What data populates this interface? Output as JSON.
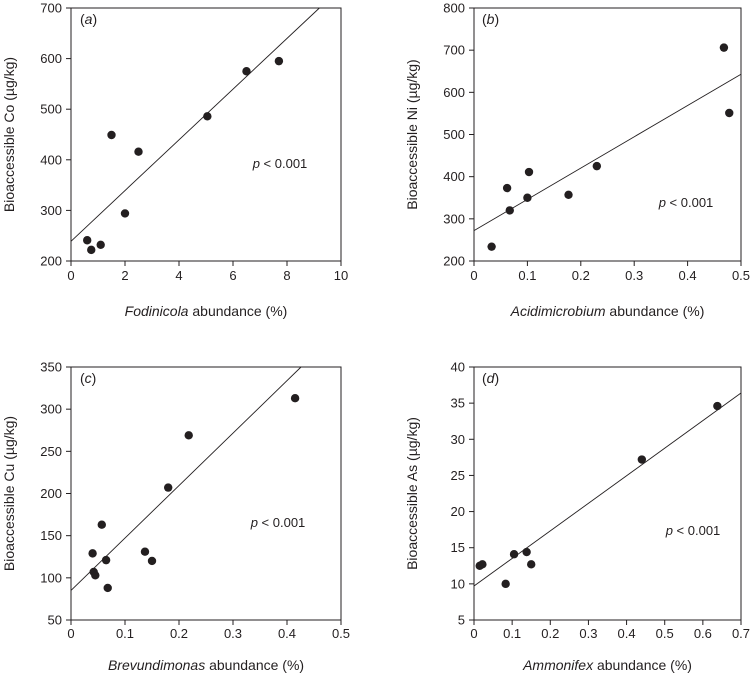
{
  "chart_data": [
    {
      "type": "scatter",
      "panel_label_open": "(",
      "panel_label_letter": "a",
      "panel_label_close": ")",
      "xlabel_italic": "Fodinicola",
      "xlabel_rest": " abundance (%)",
      "ylabel": "Bioaccessible Co (µg/kg)",
      "xlim": [
        0,
        10
      ],
      "ylim": [
        200,
        700
      ],
      "xticks": [
        0,
        2,
        4,
        6,
        8,
        10
      ],
      "yticks": [
        200,
        300,
        400,
        500,
        600,
        700
      ],
      "points": [
        {
          "x": 0.6,
          "y": 241
        },
        {
          "x": 0.75,
          "y": 222
        },
        {
          "x": 1.1,
          "y": 232
        },
        {
          "x": 1.5,
          "y": 449
        },
        {
          "x": 2.0,
          "y": 294
        },
        {
          "x": 2.5,
          "y": 416
        },
        {
          "x": 5.05,
          "y": 486
        },
        {
          "x": 6.5,
          "y": 575
        },
        {
          "x": 7.7,
          "y": 595
        }
      ],
      "fit_line": {
        "x": [
          0,
          9.2
        ],
        "y": [
          239,
          700
        ]
      },
      "annotation_italic": "p",
      "annotation_rest": " < 0.001"
    },
    {
      "type": "scatter",
      "panel_label_open": "(",
      "panel_label_letter": "b",
      "panel_label_close": ")",
      "xlabel_italic": "Acidimicrobium",
      "xlabel_rest": " abundance (%)",
      "ylabel": "Bioaccessible Ni (µg/kg)",
      "xlim": [
        0,
        0.5
      ],
      "ylim": [
        200,
        800
      ],
      "xticks": [
        0,
        0.1,
        0.2,
        0.3,
        0.4,
        0.5
      ],
      "yticks": [
        200,
        300,
        400,
        500,
        600,
        700,
        800
      ],
      "points": [
        {
          "x": 0.033,
          "y": 234
        },
        {
          "x": 0.062,
          "y": 373
        },
        {
          "x": 0.067,
          "y": 320
        },
        {
          "x": 0.1,
          "y": 350
        },
        {
          "x": 0.103,
          "y": 411
        },
        {
          "x": 0.177,
          "y": 357
        },
        {
          "x": 0.23,
          "y": 425
        },
        {
          "x": 0.468,
          "y": 706
        },
        {
          "x": 0.478,
          "y": 551
        }
      ],
      "fit_line": {
        "x": [
          0,
          0.5
        ],
        "y": [
          272,
          643
        ]
      },
      "annotation_italic": "p",
      "annotation_rest": " < 0.001"
    },
    {
      "type": "scatter",
      "panel_label_open": "(",
      "panel_label_letter": "c",
      "panel_label_close": ")",
      "xlabel_italic": "Brevundimonas",
      "xlabel_rest": " abundance (%)",
      "ylabel": "Bioaccessible Cu (µg/kg)",
      "xlim": [
        0,
        0.5
      ],
      "ylim": [
        50,
        350
      ],
      "xticks": [
        0,
        0.1,
        0.2,
        0.3,
        0.4,
        0.5
      ],
      "yticks": [
        50,
        100,
        150,
        200,
        250,
        300,
        350
      ],
      "points": [
        {
          "x": 0.04,
          "y": 129
        },
        {
          "x": 0.042,
          "y": 107
        },
        {
          "x": 0.045,
          "y": 103
        },
        {
          "x": 0.057,
          "y": 163
        },
        {
          "x": 0.065,
          "y": 121
        },
        {
          "x": 0.068,
          "y": 88
        },
        {
          "x": 0.137,
          "y": 131
        },
        {
          "x": 0.15,
          "y": 120
        },
        {
          "x": 0.18,
          "y": 207
        },
        {
          "x": 0.218,
          "y": 269
        },
        {
          "x": 0.415,
          "y": 313
        }
      ],
      "fit_line": {
        "x": [
          0,
          0.426
        ],
        "y": [
          85,
          350
        ]
      },
      "annotation_italic": "p",
      "annotation_rest": " < 0.001"
    },
    {
      "type": "scatter",
      "panel_label_open": "(",
      "panel_label_letter": "d",
      "panel_label_close": ")",
      "xlabel_italic": "Ammonifex",
      "xlabel_rest": " abundance (%)",
      "ylabel": "Bioaccessible As (µg/kg)",
      "xlim": [
        0,
        0.7
      ],
      "ylim": [
        5,
        40
      ],
      "xticks": [
        0,
        0.1,
        0.2,
        0.3,
        0.4,
        0.5,
        0.6,
        0.7
      ],
      "yticks": [
        5,
        10,
        15,
        20,
        25,
        30,
        35,
        40
      ],
      "points": [
        {
          "x": 0.015,
          "y": 12.5
        },
        {
          "x": 0.022,
          "y": 12.7
        },
        {
          "x": 0.083,
          "y": 10.0
        },
        {
          "x": 0.105,
          "y": 14.1
        },
        {
          "x": 0.138,
          "y": 14.4
        },
        {
          "x": 0.15,
          "y": 12.7
        },
        {
          "x": 0.44,
          "y": 27.2
        },
        {
          "x": 0.638,
          "y": 34.6
        }
      ],
      "fit_line": {
        "x": [
          0,
          0.7
        ],
        "y": [
          9.7,
          36.4
        ]
      },
      "annotation_italic": "p",
      "annotation_rest": " < 0.001"
    }
  ]
}
